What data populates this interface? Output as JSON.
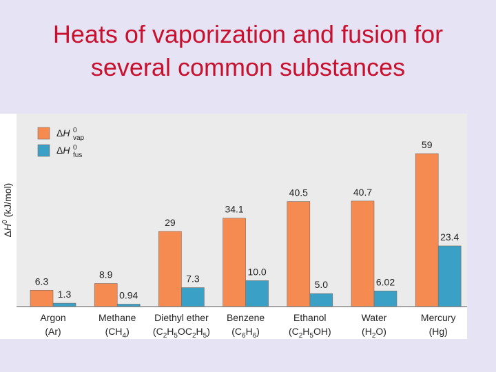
{
  "slide": {
    "title_line1": "Heats of vaporization and fusion for",
    "title_line2": "several common substances"
  },
  "chart_data": {
    "type": "bar",
    "ylabel": "ΔH0 (kJ/mol)",
    "ylabel_parts": {
      "delta": "Δ",
      "h": "H",
      "sup": "0",
      "unit": " (kJ/mol)"
    },
    "categories": [
      {
        "name": "Argon",
        "formula": [
          {
            "t": "(Ar)"
          }
        ]
      },
      {
        "name": "Methane",
        "formula": [
          {
            "t": "(CH"
          },
          {
            "sub": "4"
          },
          {
            "t": ")"
          }
        ]
      },
      {
        "name": "Diethyl ether",
        "formula": [
          {
            "t": "(C"
          },
          {
            "sub": "2"
          },
          {
            "t": "H"
          },
          {
            "sub": "5"
          },
          {
            "t": "OC"
          },
          {
            "sub": "2"
          },
          {
            "t": "H"
          },
          {
            "sub": "5"
          },
          {
            "t": ")"
          }
        ]
      },
      {
        "name": "Benzene",
        "formula": [
          {
            "t": "(C"
          },
          {
            "sub": "6"
          },
          {
            "t": "H"
          },
          {
            "sub": "6"
          },
          {
            "t": ")"
          }
        ]
      },
      {
        "name": "Ethanol",
        "formula": [
          {
            "t": "(C"
          },
          {
            "sub": "2"
          },
          {
            "t": "H"
          },
          {
            "sub": "5"
          },
          {
            "t": "OH)"
          }
        ]
      },
      {
        "name": "Water",
        "formula": [
          {
            "t": "(H"
          },
          {
            "sub": "2"
          },
          {
            "t": "O)"
          }
        ]
      },
      {
        "name": "Mercury",
        "formula": [
          {
            "t": "(Hg)"
          }
        ]
      }
    ],
    "series": [
      {
        "name": "ΔH0vap",
        "legend_parts": {
          "delta": "Δ",
          "h": "H",
          "sup": "0",
          "sub": "vap"
        },
        "color": "#f58b50",
        "values": [
          6.3,
          8.9,
          29,
          34.1,
          40.5,
          40.7,
          59
        ],
        "labels": [
          "6.3",
          "8.9",
          "29",
          "34.1",
          "40.5",
          "40.7",
          "59"
        ]
      },
      {
        "name": "ΔH0fus",
        "legend_parts": {
          "delta": "Δ",
          "h": "H",
          "sup": "0",
          "sub": "fus"
        },
        "color": "#3aa0c5",
        "values": [
          1.3,
          0.94,
          7.3,
          10.0,
          5.0,
          6.02,
          23.4
        ],
        "labels": [
          "1.3",
          "0.94",
          "7.3",
          "10.0",
          "5.0",
          "6.02",
          "23.4"
        ]
      }
    ],
    "ylim": [
      0,
      60
    ],
    "plot_background": "#ebebeb",
    "grid": false,
    "legend_position": "top-left"
  }
}
